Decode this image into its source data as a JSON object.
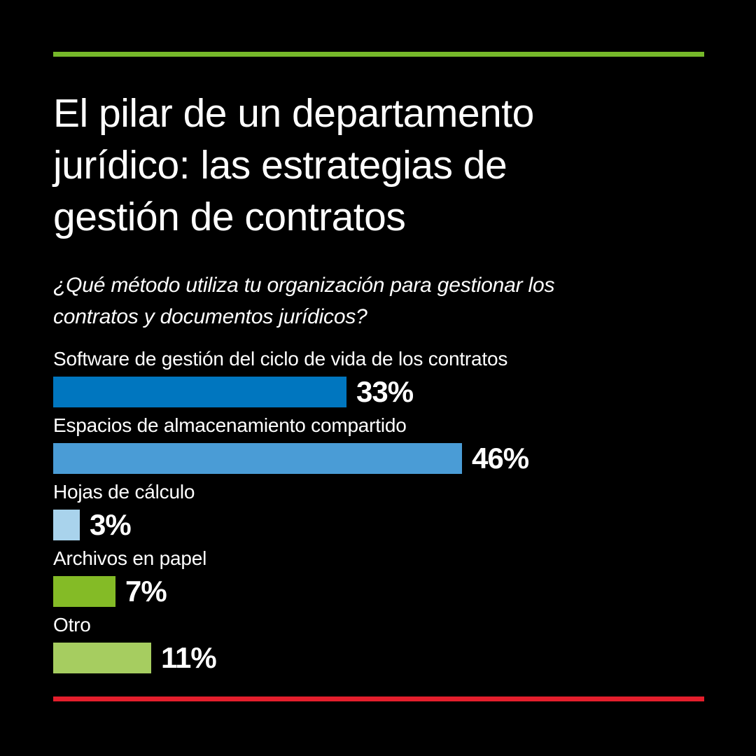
{
  "accent": {
    "top_line_color": "#76b82a",
    "bottom_line_color": "#e41e2c",
    "background_color": "#000000",
    "text_color": "#ffffff"
  },
  "title": {
    "text": "El pilar de un departamento jurídico: las estrategias de gestión de contratos",
    "lines": [
      "El pilar de un departamento",
      "jurídico: las estrategias de",
      "gestión de contratos"
    ]
  },
  "subtitle": {
    "text": "¿Qué método utiliza tu organización para gestionar los contratos y documentos jurídicos?",
    "lines": [
      "¿Qué método utiliza tu organización para gestionar los",
      "contratos y documentos jurídicos?"
    ]
  },
  "chart_data": {
    "type": "bar",
    "orientation": "horizontal",
    "title": "¿Qué método utiliza tu organización para gestionar los contratos y documentos jurídicos?",
    "categories": [
      "Software de gestión del ciclo de vida de los contratos",
      "Espacios de almacenamiento compartido",
      "Hojas de cálculo",
      "Archivos en papel",
      "Otro"
    ],
    "values": [
      33,
      46,
      3,
      7,
      11
    ],
    "value_labels": [
      "33%",
      "46%",
      "3%",
      "7%",
      "11%"
    ],
    "bar_colors": [
      "#0076bf",
      "#4a9cd6",
      "#a9d3ec",
      "#84bb26",
      "#a6cd60"
    ],
    "unit": "%",
    "xlim": [
      0,
      100
    ],
    "grid": false,
    "legend": false
  }
}
